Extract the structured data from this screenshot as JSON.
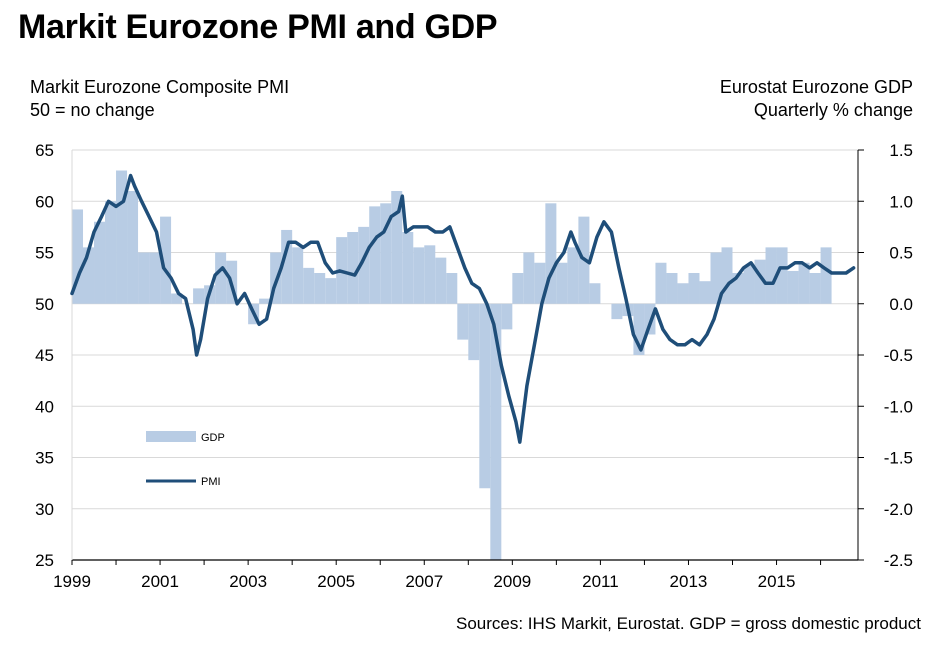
{
  "title": "Markit Eurozone PMI and GDP",
  "left_axis": {
    "line1": "Markit Eurozone Composite PMI",
    "line2": "50 = no change"
  },
  "right_axis": {
    "line1": "Eurostat Eurozone GDP",
    "line2": "Quarterly % change"
  },
  "source": "Sources: IHS Markit, Eurostat. GDP = gross domestic product",
  "colors": {
    "gdp": "#b8cce4",
    "pmi": "#1f4e79",
    "grid": "#d9d9d9",
    "axis": "#000000"
  },
  "chart_data": {
    "type": "bar+line",
    "title": "Markit Eurozone PMI and GDP",
    "legend": {
      "placement": "left-middle",
      "entries": [
        "GDP",
        "PMI"
      ]
    },
    "grid": true,
    "x_ticks": [
      "1999",
      "2001",
      "2003",
      "2005",
      "2007",
      "2009",
      "2011",
      "2013",
      "2015"
    ],
    "xlim": [
      1999.0,
      2016.85
    ],
    "y_left": {
      "label": "Markit Eurozone Composite PMI",
      "ticks": [
        "65",
        "60",
        "55",
        "50",
        "45",
        "40",
        "35",
        "30",
        "25"
      ],
      "ylim": [
        25,
        65
      ]
    },
    "y_right": {
      "label": "Eurostat Eurozone GDP",
      "ticks": [
        "1.5",
        "1.0",
        "0.5",
        "0.0",
        "-0.5",
        "-1.0",
        "-1.5",
        "-2.0",
        "-2.5"
      ],
      "ylim": [
        -2.5,
        1.5
      ]
    },
    "series": [
      {
        "name": "GDP",
        "type": "bar",
        "axis": "right",
        "x": [
          1999.0,
          1999.25,
          1999.5,
          1999.75,
          2000.0,
          2000.25,
          2000.5,
          2000.75,
          2001.0,
          2001.25,
          2001.5,
          2001.75,
          2002.0,
          2002.25,
          2002.5,
          2002.75,
          2003.0,
          2003.25,
          2003.5,
          2003.75,
          2004.0,
          2004.25,
          2004.5,
          2004.75,
          2005.0,
          2005.25,
          2005.5,
          2005.75,
          2006.0,
          2006.25,
          2006.5,
          2006.75,
          2007.0,
          2007.25,
          2007.5,
          2007.75,
          2008.0,
          2008.25,
          2008.5,
          2008.75,
          2009.0,
          2009.25,
          2009.5,
          2009.75,
          2010.0,
          2010.25,
          2010.5,
          2010.75,
          2011.0,
          2011.25,
          2011.5,
          2011.75,
          2012.0,
          2012.25,
          2012.5,
          2012.75,
          2013.0,
          2013.25,
          2013.5,
          2013.75,
          2014.0,
          2014.25,
          2014.5,
          2014.75,
          2015.0,
          2015.25,
          2015.5,
          2015.75,
          2016.0,
          2016.25
        ],
        "values": [
          0.92,
          0.55,
          0.8,
          1.0,
          1.3,
          1.1,
          0.5,
          0.5,
          0.85,
          0.1,
          0.0,
          0.15,
          0.18,
          0.5,
          0.42,
          0.0,
          -0.2,
          0.05,
          0.5,
          0.72,
          0.55,
          0.35,
          0.3,
          0.25,
          0.65,
          0.7,
          0.75,
          0.95,
          0.98,
          1.1,
          0.7,
          0.55,
          0.57,
          0.45,
          0.3,
          -0.35,
          -0.55,
          -1.8,
          -2.55,
          -0.25,
          0.3,
          0.5,
          0.4,
          0.98,
          0.4,
          0.55,
          0.85,
          0.2,
          0.0,
          -0.15,
          -0.12,
          -0.5,
          -0.3,
          0.4,
          0.3,
          0.2,
          0.3,
          0.22,
          0.5,
          0.55,
          0.3,
          0.37,
          0.43,
          0.55,
          0.55,
          0.32,
          0.4,
          0.3,
          0.55,
          0.0
        ]
      },
      {
        "name": "PMI",
        "type": "line",
        "axis": "left",
        "x": [
          1999.0,
          1999.17,
          1999.33,
          1999.5,
          1999.67,
          1999.83,
          2000.0,
          2000.17,
          2000.33,
          2000.42,
          2000.58,
          2000.75,
          2000.92,
          2001.08,
          2001.25,
          2001.42,
          2001.58,
          2001.75,
          2001.83,
          2001.92,
          2002.08,
          2002.25,
          2002.42,
          2002.58,
          2002.75,
          2002.92,
          2003.08,
          2003.25,
          2003.42,
          2003.58,
          2003.75,
          2003.92,
          2004.08,
          2004.25,
          2004.42,
          2004.58,
          2004.75,
          2004.92,
          2005.08,
          2005.25,
          2005.42,
          2005.58,
          2005.75,
          2005.92,
          2006.08,
          2006.25,
          2006.42,
          2006.5,
          2006.58,
          2006.75,
          2006.92,
          2007.08,
          2007.25,
          2007.42,
          2007.58,
          2007.75,
          2007.92,
          2008.08,
          2008.25,
          2008.42,
          2008.58,
          2008.75,
          2008.92,
          2009.08,
          2009.17,
          2009.33,
          2009.5,
          2009.67,
          2009.83,
          2010.0,
          2010.17,
          2010.33,
          2010.42,
          2010.58,
          2010.75,
          2010.92,
          2011.08,
          2011.25,
          2011.42,
          2011.58,
          2011.75,
          2011.92,
          2012.08,
          2012.25,
          2012.42,
          2012.58,
          2012.75,
          2012.92,
          2013.08,
          2013.25,
          2013.42,
          2013.58,
          2013.75,
          2013.92,
          2014.08,
          2014.25,
          2014.42,
          2014.58,
          2014.75,
          2014.92,
          2015.08,
          2015.25,
          2015.42,
          2015.58,
          2015.75,
          2015.92,
          2016.08,
          2016.25,
          2016.42,
          2016.58,
          2016.75
        ],
        "values": [
          51.0,
          53.0,
          54.5,
          57.0,
          58.5,
          60.0,
          59.5,
          60.0,
          62.5,
          61.5,
          60.0,
          58.5,
          57.0,
          53.5,
          52.5,
          51.0,
          50.5,
          47.5,
          45.0,
          46.5,
          50.5,
          52.8,
          53.5,
          52.5,
          50.0,
          51.0,
          49.5,
          48.0,
          48.5,
          51.5,
          53.5,
          56.0,
          56.0,
          55.5,
          56.0,
          56.0,
          54.0,
          53.0,
          53.2,
          53.0,
          52.8,
          54.0,
          55.5,
          56.5,
          57.0,
          58.5,
          59.0,
          60.5,
          57.0,
          57.5,
          57.5,
          57.5,
          57.0,
          57.0,
          57.5,
          55.5,
          53.5,
          52.0,
          51.5,
          50.0,
          48.0,
          44.0,
          41.0,
          38.5,
          36.5,
          42.0,
          46.0,
          50.0,
          52.5,
          54.0,
          55.0,
          57.0,
          56.0,
          54.5,
          54.0,
          56.5,
          58.0,
          57.0,
          53.5,
          50.5,
          47.0,
          45.5,
          47.5,
          49.5,
          47.5,
          46.5,
          46.0,
          46.0,
          46.5,
          46.0,
          47.0,
          48.5,
          51.0,
          52.0,
          52.5,
          53.5,
          54.0,
          53.0,
          52.0,
          52.0,
          53.5,
          53.5,
          54.0,
          54.0,
          53.5,
          54.0,
          53.5,
          53.0,
          53.0,
          53.0,
          53.5
        ]
      }
    ]
  }
}
